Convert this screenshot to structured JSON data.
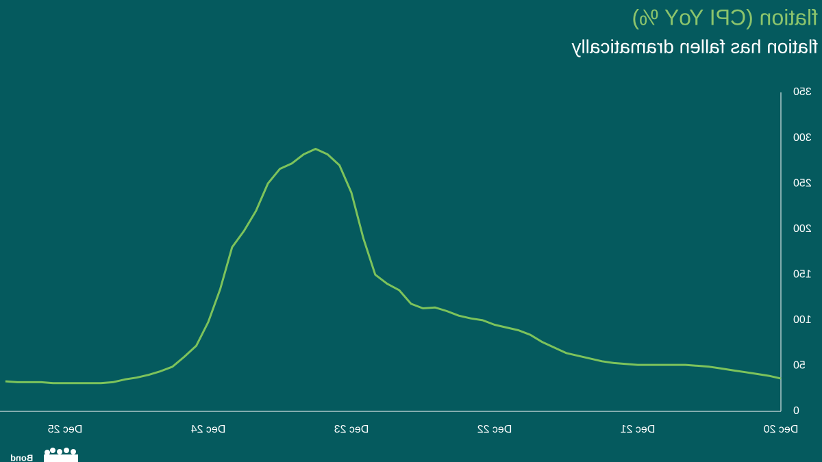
{
  "chart_data": {
    "type": "line",
    "title": "flation (CPI YoY %)",
    "subtitle": "flation has fallen dramatically",
    "source": "Bond",
    "categories": [
      "Dec 20",
      null,
      null,
      null,
      null,
      null,
      null,
      null,
      null,
      null,
      null,
      null,
      "Dec 21",
      null,
      null,
      null,
      null,
      null,
      null,
      null,
      null,
      null,
      null,
      null,
      "Dec 22",
      null,
      null,
      null,
      null,
      null,
      null,
      null,
      null,
      null,
      null,
      null,
      "Dec 23",
      null,
      null,
      null,
      null,
      null,
      null,
      null,
      null,
      null,
      null,
      null,
      "Dec 24",
      null,
      null,
      null,
      null,
      null,
      null,
      null,
      null,
      null,
      null,
      null,
      "Dec 25",
      null,
      null,
      null,
      null,
      null
    ],
    "series": [
      {
        "name": "CPI YoY %",
        "color": "#7dc35b",
        "values": [
          36,
          39,
          41,
          43,
          45,
          47,
          49,
          50,
          51,
          51,
          51,
          51,
          51,
          52,
          53,
          55,
          58,
          61,
          64,
          70,
          76,
          84,
          89,
          92,
          95,
          100,
          102,
          105,
          110,
          114,
          113,
          118,
          133,
          140,
          150,
          190,
          240,
          270,
          282,
          288,
          282,
          272,
          266,
          250,
          220,
          198,
          180,
          134,
          98,
          72,
          60,
          49,
          44,
          40,
          37,
          35,
          32,
          31,
          31,
          31,
          31,
          31,
          32,
          32,
          32,
          33
        ]
      }
    ],
    "ylim": [
      0,
      350
    ],
    "yticks": [
      0,
      50,
      100,
      150,
      200,
      250,
      300,
      350
    ],
    "mirrored": true
  }
}
